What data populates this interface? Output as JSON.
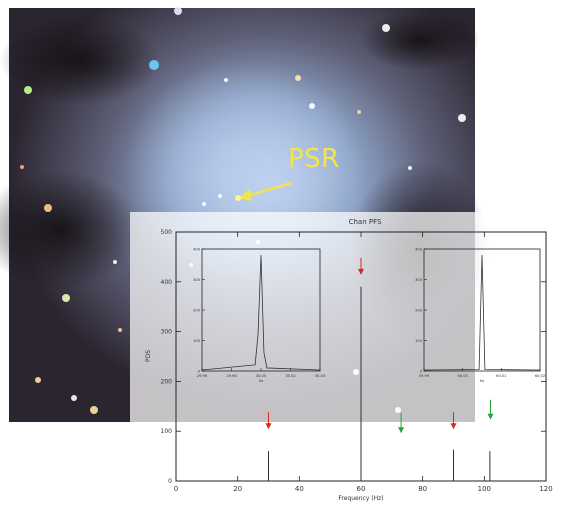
{
  "image": {
    "psr_label": "PSR",
    "arrow_color": "#f2e44d"
  },
  "chart_data": [
    {
      "type": "line",
      "title": "Chan PFS",
      "xlabel": "Frequency (Hz)",
      "ylabel": "PDS",
      "xlim": [
        0,
        120
      ],
      "ylim": [
        0,
        500
      ],
      "x_ticks": [
        0,
        20,
        40,
        60,
        80,
        100,
        120
      ],
      "y_ticks": [
        0,
        100,
        200,
        300,
        400,
        500
      ],
      "x_tick_labels": [
        "0",
        "20",
        "40",
        "60",
        "80",
        "100",
        "120"
      ],
      "y_tick_labels": [
        "0",
        "100",
        "200",
        "300",
        "400",
        "500"
      ],
      "grid": false,
      "series": [
        {
          "x": [
            30,
            60,
            90,
            101.8
          ],
          "values": [
            60,
            390,
            63,
            60
          ]
        }
      ],
      "red_markers": [
        {
          "x": 30,
          "y": 110
        },
        {
          "x": 60,
          "y": 420
        },
        {
          "x": 90,
          "y": 110
        }
      ],
      "green_arrows": [
        {
          "x": 73,
          "y": 100
        },
        {
          "x": 102,
          "y": 127
        }
      ],
      "marker_color": "#d9281a",
      "arrow_color": "#2e9e3e"
    },
    {
      "type": "line",
      "title": "",
      "x_tick_labels": [
        "29.96",
        "29.98",
        "30.00",
        "30.02",
        "30.04"
      ],
      "y_tick_labels": [
        "0",
        "100",
        "200",
        "300",
        "400"
      ],
      "xlim": [
        29.96,
        30.04
      ],
      "ylim": [
        0,
        400
      ],
      "xlabel": "Hz",
      "series": [
        {
          "x": [
            29.996,
            29.998,
            30.0,
            30.002,
            30.004
          ],
          "values": [
            20,
            120,
            380,
            60,
            10
          ]
        }
      ]
    },
    {
      "type": "line",
      "title": "",
      "x_tick_labels": [
        "59.99",
        "60.00",
        "60.01",
        "60.02"
      ],
      "y_tick_labels": [
        "0",
        "100",
        "200",
        "300",
        "400"
      ],
      "xlim": [
        59.985,
        60.025
      ],
      "ylim": [
        0,
        400
      ],
      "xlabel": "Hz",
      "series": [
        {
          "x": [
            60.004,
            60.005,
            60.006
          ],
          "values": [
            5,
            380,
            5
          ]
        }
      ]
    }
  ]
}
